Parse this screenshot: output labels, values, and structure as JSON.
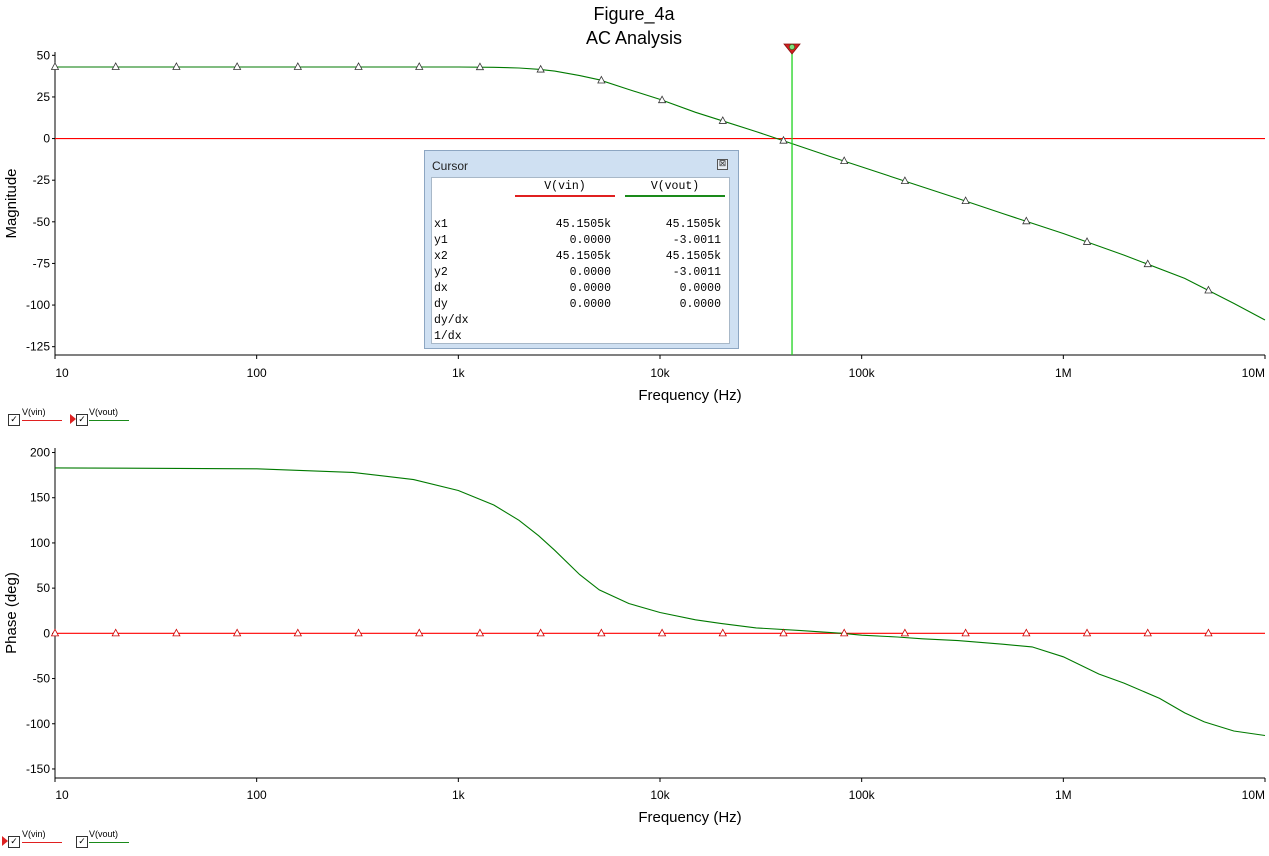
{
  "title": "Figure_4a",
  "subtitle": "AC Analysis",
  "colors": {
    "vin": "#ff0000",
    "vout": "#007a00",
    "cursor": "#1ed21e"
  },
  "chart_data": [
    {
      "type": "line",
      "name": "magnitude",
      "xlabel": "Frequency (Hz)",
      "ylabel": "Magnitude",
      "xscale": "log",
      "xlim": [
        10,
        10000000
      ],
      "ylim": [
        -130,
        52
      ],
      "xticks": [
        "10",
        "100",
        "1k",
        "10k",
        "100k",
        "1M",
        "10M"
      ],
      "yticks": [
        "50",
        "25",
        "0",
        "-25",
        "-50",
        "-75",
        "-100",
        "-125"
      ],
      "series": [
        {
          "name": "V(vin)",
          "x": [
            10,
            10000000
          ],
          "y": [
            0,
            0
          ]
        },
        {
          "name": "V(vout)",
          "x": [
            10,
            100,
            1000,
            1500,
            2000,
            2500,
            3000,
            4000,
            5000,
            7000,
            10000,
            15000,
            20000,
            30000,
            45150,
            70000,
            100000,
            200000,
            300000,
            500000,
            1000000,
            2000000,
            4000000,
            7000000,
            10000000
          ],
          "y": [
            43,
            43,
            43,
            42.8,
            42.4,
            41.6,
            40.5,
            37.8,
            35.3,
            29.5,
            23.5,
            15.8,
            11,
            4.2,
            -3,
            -10.8,
            -17,
            -29,
            -36,
            -45,
            -57,
            -70,
            -84,
            -99,
            -109
          ]
        }
      ]
    },
    {
      "type": "line",
      "name": "phase",
      "xlabel": "Frequency (Hz)",
      "ylabel": "Phase (deg)",
      "xscale": "log",
      "xlim": [
        10,
        10000000
      ],
      "ylim": [
        -160,
        205
      ],
      "xticks": [
        "10",
        "100",
        "1k",
        "10k",
        "100k",
        "1M",
        "10M"
      ],
      "yticks": [
        "200",
        "150",
        "100",
        "50",
        "0",
        "-50",
        "-100",
        "-150"
      ],
      "series": [
        {
          "name": "V(vin)",
          "x": [
            10,
            10000000
          ],
          "y": [
            0,
            0
          ]
        },
        {
          "name": "V(vout)",
          "x": [
            10,
            100,
            300,
            600,
            1000,
            1500,
            2000,
            2500,
            3000,
            4000,
            5000,
            7000,
            10000,
            15000,
            20000,
            30000,
            50000,
            80000,
            100000,
            150000,
            200000,
            300000,
            500000,
            700000,
            1000000,
            1500000,
            2000000,
            3000000,
            4000000,
            5000000,
            7000000,
            10000000
          ],
          "y": [
            183,
            182,
            178,
            170,
            158,
            142,
            125,
            108,
            92,
            65,
            48,
            33,
            23,
            15,
            11,
            6,
            3,
            0,
            -2,
            -4,
            -6,
            -8,
            -12,
            -15,
            -26,
            -45,
            -55,
            -72,
            -88,
            -98,
            -108,
            -113
          ]
        }
      ]
    }
  ],
  "cursor_window": {
    "title": "Cursor",
    "close": "⊠",
    "col1": "V(vin)",
    "col2": "V(vout)",
    "rows": [
      {
        "label": "x1",
        "v1": "45.1505k",
        "v2": "45.1505k"
      },
      {
        "label": "y1",
        "v1": "0.0000",
        "v2": "-3.0011"
      },
      {
        "label": "x2",
        "v1": "45.1505k",
        "v2": "45.1505k"
      },
      {
        "label": "y2",
        "v1": "0.0000",
        "v2": "-3.0011"
      },
      {
        "label": "dx",
        "v1": "0.0000",
        "v2": "0.0000"
      },
      {
        "label": "dy",
        "v1": "0.0000",
        "v2": "0.0000"
      },
      {
        "label": "dy/dx",
        "v1": "",
        "v2": ""
      },
      {
        "label": "1/dx",
        "v1": "",
        "v2": ""
      }
    ]
  },
  "cursor_x": 45150.5,
  "legends": {
    "vin": "V(vin)",
    "vout": "V(vout)",
    "check": "✓"
  }
}
